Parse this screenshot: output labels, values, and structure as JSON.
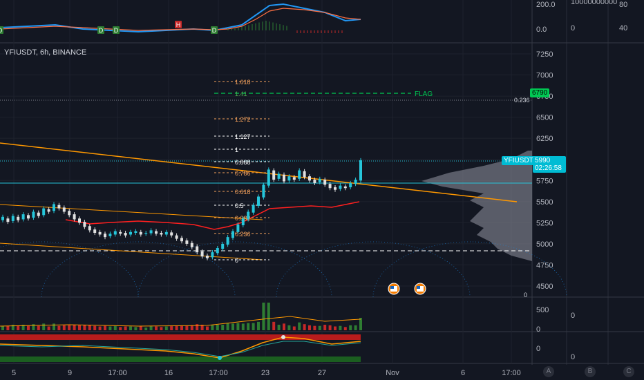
{
  "symbol_legend": "YFIUSDT, 6h, BINANCE",
  "price_axis": {
    "ticks": [
      "7250",
      "7000",
      "6750",
      "6500",
      "6250",
      "6000",
      "5750",
      "5500",
      "5250",
      "5000",
      "4750",
      "4500"
    ],
    "last_price": "5990",
    "countdown": "02:26:58",
    "symbol_tag": "YFIUSDT",
    "flag_price": "6790",
    "fib_axis_tag": "0.236",
    "bottom_marker": "0"
  },
  "top_indicator_axis": {
    "upper": "200.0",
    "lower": "0.0",
    "col2_upper": "10000000000",
    "col2_lower": "0",
    "col3_upper": "80",
    "col3_lower": "40"
  },
  "volume_axis": {
    "upper": "500",
    "lower": "0",
    "col2": "0"
  },
  "osc_axis": {
    "value": "0",
    "col2": "0"
  },
  "time_axis": [
    "5",
    "9",
    "17:00",
    "16",
    "17:00",
    "23",
    "27",
    "Nov",
    "6",
    "17:00"
  ],
  "axis_buttons": [
    "A",
    "B",
    "C"
  ],
  "fib_levels": [
    {
      "label": "1.618",
      "color": "#f7a35c"
    },
    {
      "label": "1.41",
      "color": "#4caf50"
    },
    {
      "label": "1.272",
      "color": "#f7a35c"
    },
    {
      "label": "1.127",
      "color": "#ffffff"
    },
    {
      "label": "1",
      "color": "#ffffff"
    },
    {
      "label": "0.888",
      "color": "#ffffff"
    },
    {
      "label": "0.786",
      "color": "#f7a35c"
    },
    {
      "label": "0.618",
      "color": "#f7a35c"
    },
    {
      "label": "0.5",
      "color": "#ffffff"
    },
    {
      "label": "0.382",
      "color": "#f7a35c"
    },
    {
      "label": "0.236",
      "color": "#f7a35c"
    },
    {
      "label": "0",
      "color": "#ffffff"
    }
  ],
  "flag_label": "FLAG",
  "markers": [
    "D",
    "D",
    "D",
    "H",
    "D"
  ],
  "colors": {
    "up": "#26c6da",
    "down": "#e0e0e0",
    "trend": "#ff9800",
    "red_line": "#ff1f1f",
    "flag": "#00c853"
  },
  "chart_data": {
    "type": "line",
    "title": "YFIUSDT, 6h, BINANCE",
    "ylim": [
      4400,
      7400
    ],
    "candles": [
      [
        5280,
        5320
      ],
      [
        5300,
        5260
      ],
      [
        5270,
        5330
      ],
      [
        5320,
        5280
      ],
      [
        5290,
        5350
      ],
      [
        5340,
        5300
      ],
      [
        5310,
        5380
      ],
      [
        5370,
        5330
      ],
      [
        5340,
        5420
      ],
      [
        5410,
        5380
      ],
      [
        5390,
        5470
      ],
      [
        5460,
        5420
      ],
      [
        5430,
        5380
      ],
      [
        5390,
        5340
      ],
      [
        5350,
        5290
      ],
      [
        5300,
        5250
      ],
      [
        5260,
        5200
      ],
      [
        5210,
        5160
      ],
      [
        5170,
        5130
      ],
      [
        5140,
        5110
      ],
      [
        5120,
        5080
      ],
      [
        5090,
        5120
      ],
      [
        5110,
        5150
      ],
      [
        5140,
        5120
      ],
      [
        5130,
        5100
      ],
      [
        5110,
        5140
      ],
      [
        5130,
        5150
      ],
      [
        5140,
        5110
      ],
      [
        5120,
        5130
      ],
      [
        5125,
        5160
      ],
      [
        5150,
        5120
      ],
      [
        5130,
        5110
      ],
      [
        5110,
        5140
      ],
      [
        5135,
        5100
      ],
      [
        5100,
        5060
      ],
      [
        5070,
        5030
      ],
      [
        5040,
        5000
      ],
      [
        5010,
        4960
      ],
      [
        4970,
        4900
      ],
      [
        4910,
        4850
      ],
      [
        4860,
        4830
      ],
      [
        4840,
        4900
      ],
      [
        4890,
        4950
      ],
      [
        4940,
        5000
      ],
      [
        4990,
        5080
      ],
      [
        5070,
        5150
      ],
      [
        5140,
        5230
      ],
      [
        5220,
        5300
      ],
      [
        5290,
        5380
      ],
      [
        5370,
        5460
      ],
      [
        5450,
        5560
      ],
      [
        5550,
        5700
      ],
      [
        5690,
        5880
      ],
      [
        5870,
        5760
      ],
      [
        5770,
        5830
      ],
      [
        5820,
        5740
      ],
      [
        5750,
        5800
      ],
      [
        5790,
        5760
      ],
      [
        5770,
        5870
      ],
      [
        5860,
        5790
      ],
      [
        5800,
        5750
      ],
      [
        5760,
        5720
      ],
      [
        5730,
        5770
      ],
      [
        5760,
        5700
      ],
      [
        5710,
        5660
      ],
      [
        5670,
        5640
      ],
      [
        5650,
        5690
      ],
      [
        5680,
        5660
      ],
      [
        5670,
        5720
      ],
      [
        5710,
        5760
      ],
      [
        5750,
        5990
      ]
    ]
  }
}
